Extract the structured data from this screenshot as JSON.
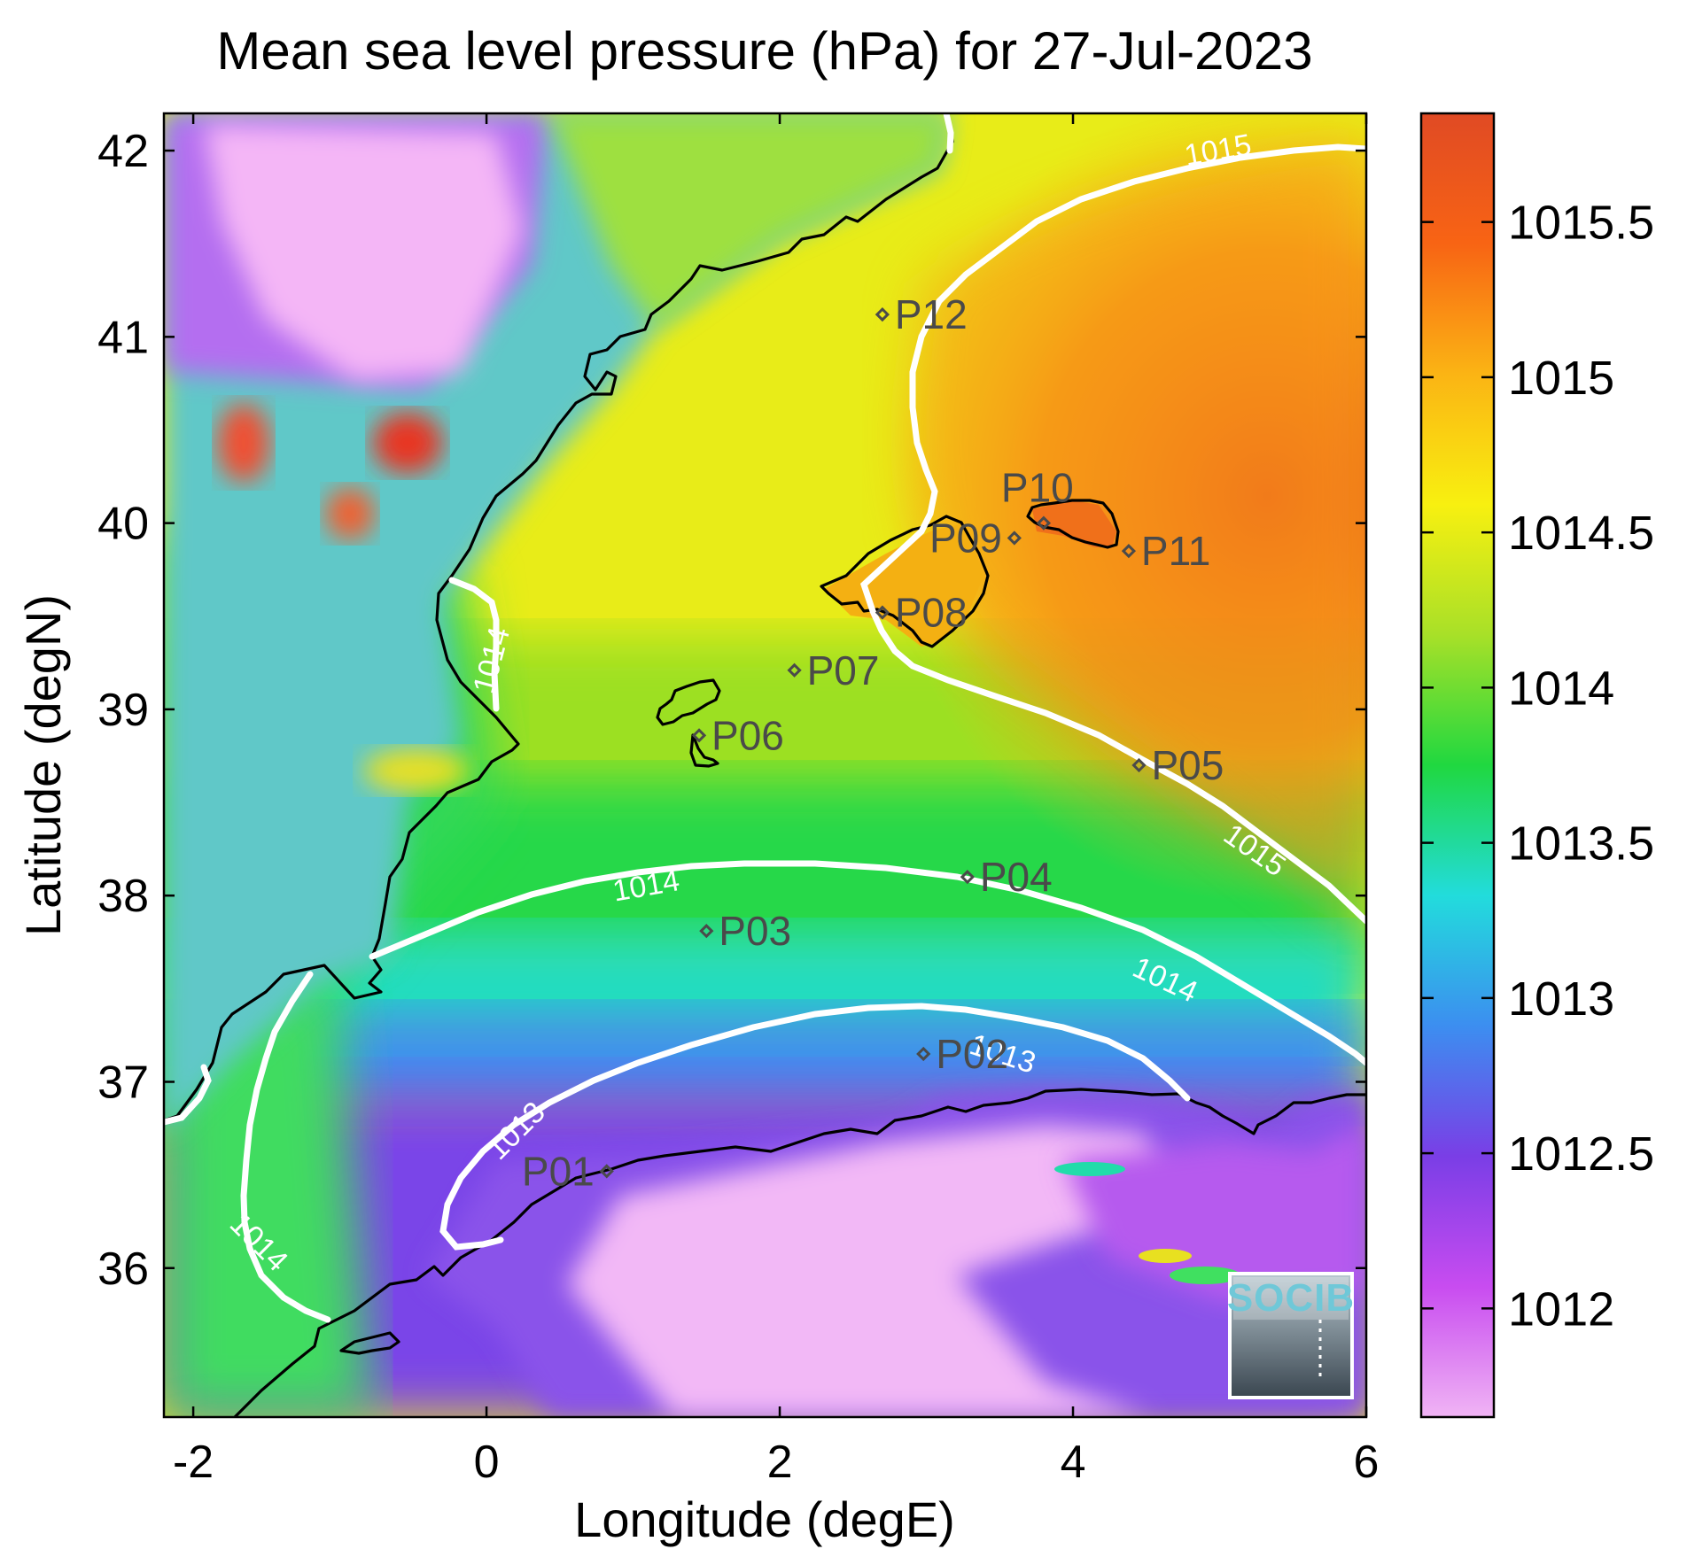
{
  "title": "Mean sea level pressure (hPa) for 27-Jul-2023",
  "x_axis": {
    "label": "Longitude (degE)",
    "range": [
      -2.2,
      6.0
    ],
    "ticks": [
      -2,
      0,
      2,
      4,
      6
    ],
    "tick_labels": [
      "-2",
      "0",
      "2",
      "4",
      "6"
    ]
  },
  "y_axis": {
    "label": "Latitude (degN)",
    "range": [
      35.2,
      42.2
    ],
    "ticks": [
      36,
      37,
      38,
      39,
      40,
      41,
      42
    ],
    "tick_labels": [
      "36",
      "37",
      "38",
      "39",
      "40",
      "41",
      "42"
    ]
  },
  "colorbar": {
    "range": [
      1011.65,
      1015.85
    ],
    "ticks": [
      1012,
      1012.5,
      1013,
      1013.5,
      1014,
      1014.5,
      1015,
      1015.5
    ],
    "tick_labels": [
      "1012",
      "1012.5",
      "1013",
      "1013.5",
      "1014",
      "1014.5",
      "1015",
      "1015.5"
    ],
    "colors": [
      "#f0b4f4",
      "#c84cf0",
      "#7a3ee6",
      "#3c8ef0",
      "#22dcdc",
      "#20d840",
      "#a8e028",
      "#f8f010",
      "#fbb414",
      "#f86414",
      "#e04a24"
    ]
  },
  "points": [
    {
      "id": "P01",
      "lon": 0.82,
      "lat": 36.52
    },
    {
      "id": "P02",
      "lon": 2.98,
      "lat": 37.15
    },
    {
      "id": "P03",
      "lon": 1.5,
      "lat": 37.81
    },
    {
      "id": "P04",
      "lon": 3.28,
      "lat": 38.1
    },
    {
      "id": "P05",
      "lon": 4.45,
      "lat": 38.7
    },
    {
      "id": "P06",
      "lon": 1.45,
      "lat": 38.86
    },
    {
      "id": "P07",
      "lon": 2.1,
      "lat": 39.21
    },
    {
      "id": "P08",
      "lon": 2.7,
      "lat": 39.52
    },
    {
      "id": "P09",
      "lon": 3.6,
      "lat": 39.92
    },
    {
      "id": "P10",
      "lon": 3.8,
      "lat": 40.0
    },
    {
      "id": "P11",
      "lon": 4.38,
      "lat": 39.85
    },
    {
      "id": "P12",
      "lon": 2.7,
      "lat": 41.12
    }
  ],
  "contours": [
    {
      "level": 1013,
      "labels": [
        {
          "text": "1013",
          "lon": 0.25,
          "lat": 36.7,
          "angle": -45
        },
        {
          "text": "1013",
          "lon": 3.5,
          "lat": 37.1,
          "angle": 18
        }
      ]
    },
    {
      "level": 1014,
      "labels": [
        {
          "text": "1014",
          "lon": 1.1,
          "lat": 38.0,
          "angle": -10
        },
        {
          "text": "1014",
          "lon": 4.6,
          "lat": 37.5,
          "angle": 25
        },
        {
          "text": "1014",
          "lon": 0.1,
          "lat": 39.25,
          "angle": -75
        },
        {
          "text": "1014",
          "lon": -1.6,
          "lat": 36.1,
          "angle": 45
        }
      ]
    },
    {
      "level": 1015,
      "labels": [
        {
          "text": "1015",
          "lon": 5.2,
          "lat": 38.2,
          "angle": 35
        },
        {
          "text": "1015",
          "lon": 5.0,
          "lat": 41.95,
          "angle": -10
        }
      ]
    }
  ],
  "logo": {
    "text": "SOCIB"
  }
}
